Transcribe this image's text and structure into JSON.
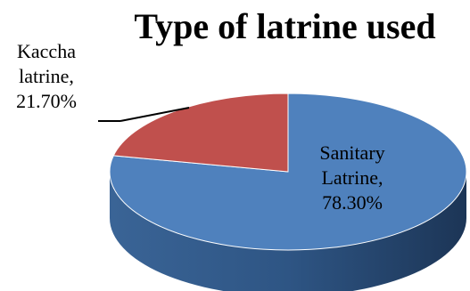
{
  "chart_data": {
    "type": "pie",
    "title": "Type of latrine used",
    "slices": [
      {
        "label_lines": [
          "Sanitary",
          "Latrine,",
          "78.30%"
        ],
        "value": 78.3,
        "color": "#4F81BD"
      },
      {
        "label_lines": [
          "Kaccha",
          "latrine,",
          "21.70%"
        ],
        "value": 21.7,
        "color": "#C0504D"
      }
    ]
  }
}
